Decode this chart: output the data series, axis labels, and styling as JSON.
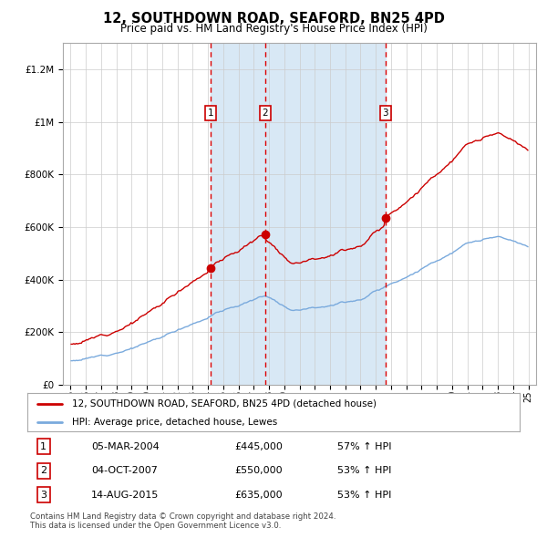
{
  "title": "12, SOUTHDOWN ROAD, SEAFORD, BN25 4PD",
  "subtitle": "Price paid vs. HM Land Registry's House Price Index (HPI)",
  "legend_line1": "12, SOUTHDOWN ROAD, SEAFORD, BN25 4PD (detached house)",
  "legend_line2": "HPI: Average price, detached house, Lewes",
  "footer1": "Contains HM Land Registry data © Crown copyright and database right 2024.",
  "footer2": "This data is licensed under the Open Government Licence v3.0.",
  "transactions": [
    {
      "num": 1,
      "date": "05-MAR-2004",
      "price": 445000,
      "hpi_change": "57% ↑ HPI",
      "x_year": 2004.17
    },
    {
      "num": 2,
      "date": "04-OCT-2007",
      "price": 550000,
      "hpi_change": "53% ↑ HPI",
      "x_year": 2007.75
    },
    {
      "num": 3,
      "date": "14-AUG-2015",
      "price": 635000,
      "hpi_change": "53% ↑ HPI",
      "x_year": 2015.62
    }
  ],
  "property_color": "#cc0000",
  "hpi_color": "#7aaadd",
  "shade_color": "#d8e8f5",
  "background_color": "#ffffff",
  "grid_color": "#cccccc",
  "dashed_line_color": "#dd0000",
  "ylim": [
    0,
    1300000
  ],
  "xlim_start": 1994.5,
  "xlim_end": 2025.5
}
